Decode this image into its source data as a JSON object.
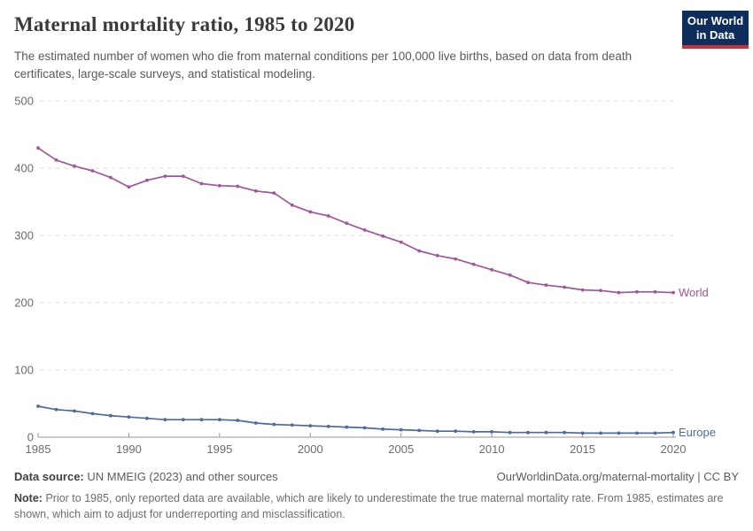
{
  "header": {
    "title": "Maternal mortality ratio, 1985 to 2020",
    "subtitle": "The estimated number of women who die from maternal conditions per 100,000 live births, based on data from death certificates, large-scale surveys, and statistical modeling.",
    "logo": {
      "line1": "Our World",
      "line2": "in Data",
      "bg_color": "#0d2e5c",
      "bar_color": "#c8303a"
    }
  },
  "chart_data": {
    "type": "line",
    "title": "Maternal mortality ratio, 1985 to 2020",
    "xlabel": "",
    "ylabel": "",
    "xlim": [
      1985,
      2020
    ],
    "ylim": [
      0,
      500
    ],
    "xticks": [
      1985,
      1990,
      1995,
      2000,
      2005,
      2010,
      2015,
      2020
    ],
    "yticks": [
      0,
      100,
      200,
      300,
      400,
      500
    ],
    "grid": "horizontal-dashed",
    "legend_position": "right-of-line-end",
    "axis_color": "#979797",
    "grid_color": "#dcdcdc",
    "tick_label_color": "#6b6b6b",
    "x": [
      1985,
      1986,
      1987,
      1988,
      1989,
      1990,
      1991,
      1992,
      1993,
      1994,
      1995,
      1996,
      1997,
      1998,
      1999,
      2000,
      2001,
      2002,
      2003,
      2004,
      2005,
      2006,
      2007,
      2008,
      2009,
      2010,
      2011,
      2012,
      2013,
      2014,
      2015,
      2016,
      2017,
      2018,
      2019,
      2020
    ],
    "series": [
      {
        "name": "World",
        "color": "#a2559c",
        "values": [
          430,
          412,
          403,
          396,
          386,
          372,
          382,
          388,
          388,
          377,
          374,
          373,
          366,
          363,
          345,
          335,
          329,
          318,
          308,
          299,
          290,
          277,
          270,
          265,
          257,
          249,
          241,
          230,
          226,
          223,
          219,
          218,
          215,
          216,
          216,
          215
        ]
      },
      {
        "name": "Europe",
        "color": "#4c6a9c",
        "values": [
          46,
          41,
          39,
          35,
          32,
          30,
          28,
          26,
          26,
          26,
          26,
          25,
          21,
          19,
          18,
          17,
          16,
          15,
          14,
          12,
          11,
          10,
          9,
          9,
          8,
          8,
          7,
          7,
          7,
          7,
          6,
          6,
          6,
          6,
          6,
          7
        ]
      }
    ]
  },
  "footer": {
    "datasource_label": "Data source:",
    "datasource_text": "UN MMEIG (2023) and other sources",
    "attribution": "OurWorldinData.org/maternal-mortality | CC BY",
    "note_label": "Note:",
    "note_text": "Prior to 1985, only reported data are available, which are likely to underestimate the true maternal mortality rate. From 1985, estimates are shown, which aim to adjust for underreporting and misclassification."
  }
}
